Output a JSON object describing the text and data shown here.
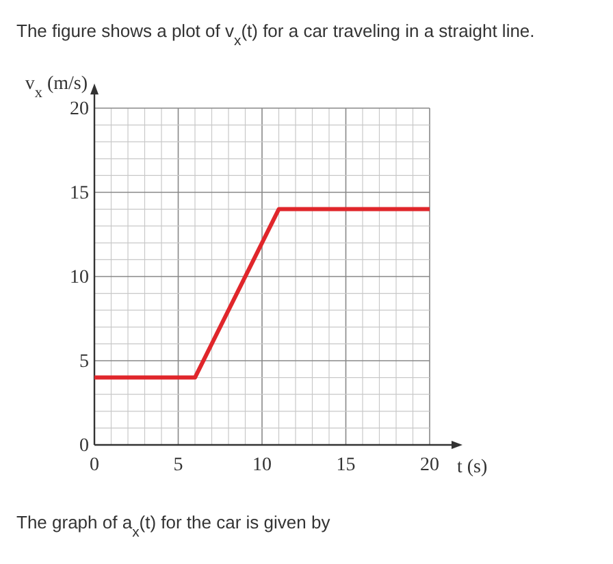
{
  "chart_data": {
    "type": "line",
    "title": "The figure shows a plot of v$_{x}$(t) for a car traveling in a straight line.",
    "xlabel": "t (s)",
    "ylabel": "v$_{x}$ (m/s)",
    "annotations": [
      "The graph of a$_{x}$(t) for the car is given by"
    ],
    "x": [
      0,
      6,
      11,
      20
    ],
    "series": [
      {
        "color": "#e0262b",
        "values": [
          4,
          4,
          14,
          14
        ]
      }
    ],
    "xlim": [
      0,
      20
    ],
    "ylim": [
      0,
      20
    ],
    "xticks": [
      0,
      5,
      10,
      15,
      20
    ],
    "yticks": [
      0,
      5,
      10,
      15,
      20
    ],
    "grid": true,
    "marker": "none",
    "line_style": "solid"
  }
}
